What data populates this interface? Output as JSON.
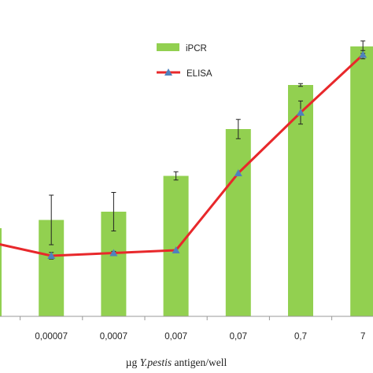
{
  "chart_data": {
    "type": "bar",
    "categories": [
      "",
      "0,00007",
      "0,0007",
      "0,007",
      "0,07",
      "0,7",
      "7"
    ],
    "xlabel_parts": [
      "µg ",
      "Y.pestis",
      " antigen/well"
    ],
    "ylim": [
      0,
      100
    ],
    "grid": false,
    "legend_position": "top-right",
    "series": [
      {
        "name": "iPCR",
        "type": "bar",
        "color": "#92d050",
        "values": [
          32,
          35,
          38,
          51,
          68,
          84,
          98
        ],
        "errors": [
          0,
          9,
          7,
          1.5,
          3.5,
          0.5,
          2.5
        ]
      },
      {
        "name": "ELISA",
        "type": "line",
        "color": "#e8282b",
        "marker_color": "#4f81bd",
        "values": [
          27,
          22,
          23,
          24,
          52,
          74,
          95
        ],
        "errors": [
          0,
          1.2,
          0.6,
          0,
          0,
          4.2,
          1.5
        ]
      }
    ]
  }
}
